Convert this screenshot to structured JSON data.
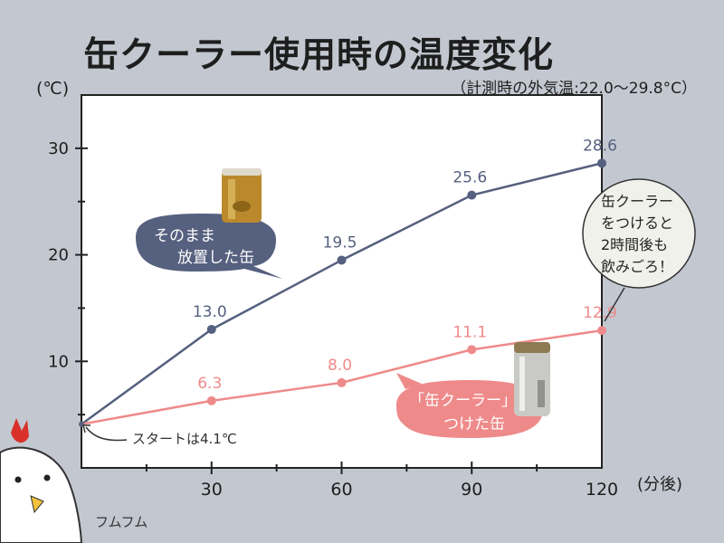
{
  "title": "缶クーラー使用時の温度変化",
  "subtitle": "（計測時の外気温:22.0〜29.8°C）",
  "y_unit": "(℃)",
  "x_unit": "(分後)",
  "colors": {
    "series_a": "#56607f",
    "series_b": "#ef8a8a",
    "axis": "#222222",
    "plot_bg": "#ffffff"
  },
  "chart_data": {
    "type": "line",
    "x": [
      0,
      30,
      60,
      90,
      120
    ],
    "xlim": [
      0,
      120
    ],
    "ylim": [
      0,
      35
    ],
    "x_ticks": [
      30,
      60,
      90,
      120
    ],
    "y_ticks": [
      10,
      20,
      30
    ],
    "series": [
      {
        "values": [
          4.1,
          13.0,
          19.5,
          25.6,
          28.6
        ],
        "labels": [
          "",
          "13.0",
          "19.5",
          "25.6",
          "28.6"
        ]
      },
      {
        "values": [
          4.1,
          6.3,
          8.0,
          11.1,
          12.9
        ],
        "labels": [
          "",
          "6.3",
          "8.0",
          "11.1",
          "12.9"
        ]
      }
    ],
    "start_note": "スタートは4.1℃",
    "bubble_a": [
      "そのまま",
      "放置した缶"
    ],
    "bubble_b": [
      "「缶クーラー」を",
      "つけた缶"
    ],
    "callout": [
      "缶クーラー",
      "をつけると",
      "2時間後も",
      "飲みごろ！"
    ]
  },
  "mascot_text": "フムフム"
}
